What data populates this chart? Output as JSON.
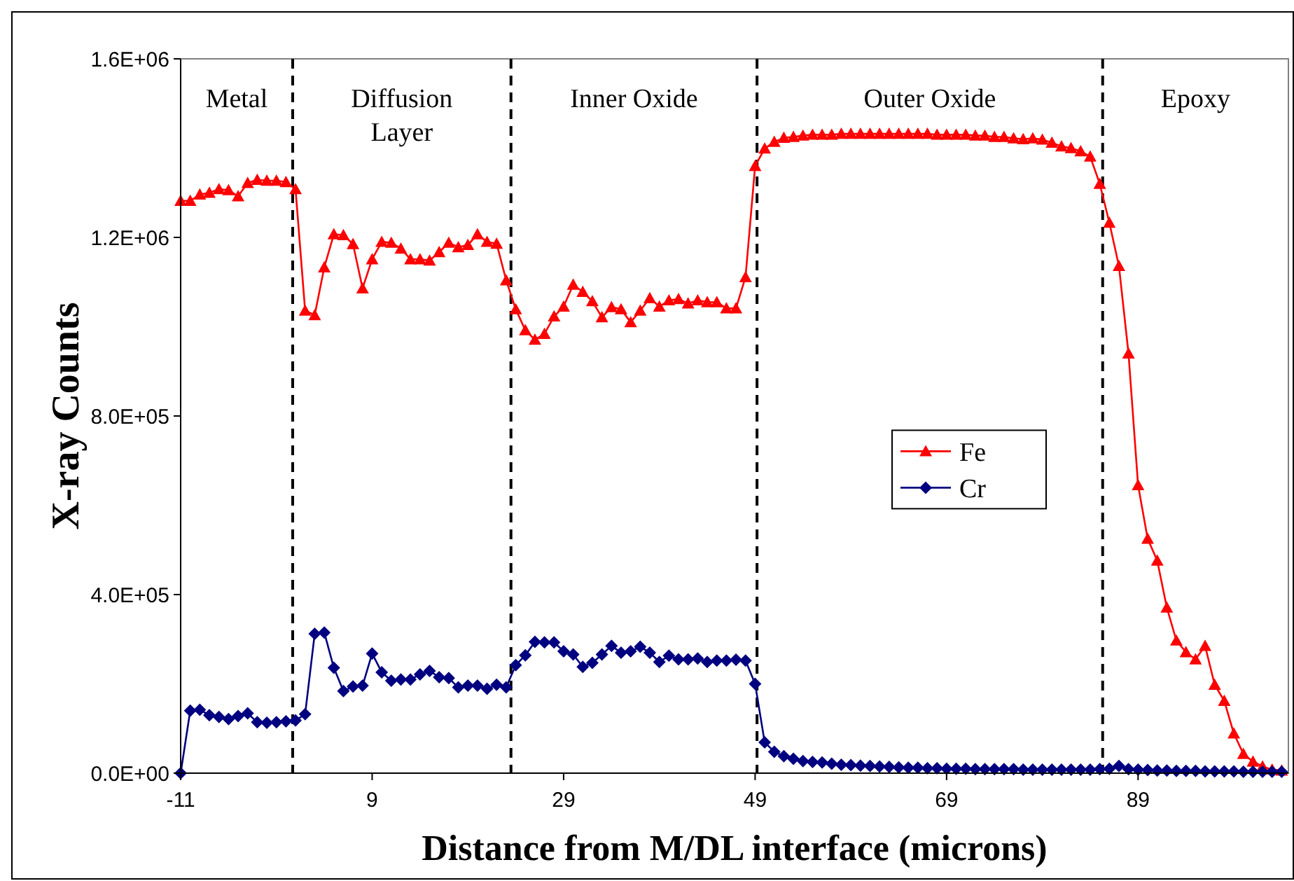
{
  "chart_data": {
    "type": "line",
    "xlabel": "Distance from M/DL interface (microns)",
    "ylabel": "X-ray Counts",
    "xlim": [
      -11,
      104.7
    ],
    "xticks": [
      -11,
      9,
      29,
      49,
      69,
      89
    ],
    "ylim": [
      0,
      1600000
    ],
    "yticks": [
      {
        "value": 0,
        "label": "0.0E+00"
      },
      {
        "value": 400000,
        "label": "4.0E+05"
      },
      {
        "value": 800000,
        "label": "8.0E+05"
      },
      {
        "value": 1200000,
        "label": "1.2E+06"
      },
      {
        "value": 1600000,
        "label": "1.6E+06"
      }
    ],
    "grid": false,
    "legend": "right",
    "line_style": "solid",
    "series": [
      {
        "name": "Fe",
        "color": "#ff0000",
        "marker": "triangle",
        "x": [
          -11,
          -10,
          -9,
          -8,
          -7,
          -6,
          -5,
          -4,
          -3,
          -2,
          -1,
          0,
          1,
          2,
          3,
          4,
          5,
          6,
          7,
          8,
          9,
          10,
          11,
          12,
          13,
          14,
          15,
          16,
          17,
          18,
          19,
          20,
          21,
          22,
          23,
          24,
          25,
          26,
          27,
          28,
          29,
          30,
          31,
          32,
          33,
          34,
          35,
          36,
          37,
          38,
          39,
          40,
          41,
          42,
          43,
          44,
          45,
          46,
          47,
          48,
          49,
          50,
          51,
          52,
          53,
          54,
          55,
          56,
          57,
          58,
          59,
          60,
          61,
          62,
          63,
          64,
          65,
          66,
          67,
          68,
          69,
          70,
          71,
          72,
          73,
          74,
          75,
          76,
          77,
          78,
          79,
          80,
          81,
          82,
          83,
          84,
          85,
          86,
          87,
          88,
          89,
          90,
          91,
          92,
          93,
          94,
          95,
          96,
          97,
          98,
          99,
          100,
          101,
          102,
          103,
          104
        ],
        "values": [
          1282000,
          1282000,
          1296000,
          1300000,
          1308000,
          1306000,
          1292000,
          1322000,
          1329000,
          1327000,
          1327000,
          1324000,
          1308000,
          1036000,
          1026000,
          1133000,
          1207000,
          1205000,
          1185000,
          1086000,
          1151000,
          1190000,
          1188000,
          1175000,
          1151000,
          1151000,
          1148000,
          1167000,
          1188000,
          1178000,
          1183000,
          1207000,
          1190000,
          1186000,
          1104000,
          1039000,
          992000,
          971000,
          984000,
          1023000,
          1045000,
          1094000,
          1078000,
          1057000,
          1021000,
          1044000,
          1039000,
          1010000,
          1036000,
          1064000,
          1045000,
          1059000,
          1062000,
          1052000,
          1059000,
          1055000,
          1055000,
          1041000,
          1041000,
          1111000,
          1360000,
          1399000,
          1414000,
          1423000,
          1425000,
          1428000,
          1430000,
          1430000,
          1430000,
          1432000,
          1432000,
          1432000,
          1432000,
          1432000,
          1432000,
          1432000,
          1432000,
          1432000,
          1432000,
          1430000,
          1430000,
          1430000,
          1430000,
          1428000,
          1428000,
          1425000,
          1425000,
          1422000,
          1420000,
          1422000,
          1419000,
          1412000,
          1404000,
          1400000,
          1393000,
          1381000,
          1320000,
          1233000,
          1136000,
          940000,
          645000,
          525000,
          476000,
          371000,
          297000,
          271000,
          255000,
          285000,
          198000,
          162000,
          89000,
          43000,
          26000,
          15000,
          8000,
          6000
        ]
      },
      {
        "name": "Cr",
        "color": "#000080",
        "marker": "diamond",
        "x": [
          -11,
          -10,
          -9,
          -8,
          -7,
          -6,
          -5,
          -4,
          -3,
          -2,
          -1,
          0,
          1,
          2,
          3,
          4,
          5,
          6,
          7,
          8,
          9,
          10,
          11,
          12,
          13,
          14,
          15,
          16,
          17,
          18,
          19,
          20,
          21,
          22,
          23,
          24,
          25,
          26,
          27,
          28,
          29,
          30,
          31,
          32,
          33,
          34,
          35,
          36,
          37,
          38,
          39,
          40,
          41,
          42,
          43,
          44,
          45,
          46,
          47,
          48,
          49,
          50,
          51,
          52,
          53,
          54,
          55,
          56,
          57,
          58,
          59,
          60,
          61,
          62,
          63,
          64,
          65,
          66,
          67,
          68,
          69,
          70,
          71,
          72,
          73,
          74,
          75,
          76,
          77,
          78,
          79,
          80,
          81,
          82,
          83,
          84,
          85,
          86,
          87,
          88,
          89,
          90,
          91,
          92,
          93,
          94,
          95,
          96,
          97,
          98,
          99,
          100,
          101,
          102,
          103,
          104
        ],
        "values": [
          0,
          140000,
          142000,
          130000,
          126000,
          121000,
          128000,
          134000,
          114000,
          113000,
          114000,
          116000,
          118000,
          132000,
          312000,
          315000,
          236000,
          184000,
          194000,
          196000,
          268000,
          226000,
          207000,
          210000,
          210000,
          221000,
          229000,
          215000,
          213000,
          192000,
          196000,
          196000,
          189000,
          198000,
          192000,
          242000,
          264000,
          294000,
          293000,
          293000,
          273000,
          266000,
          238000,
          247000,
          266000,
          285000,
          270000,
          273000,
          283000,
          270000,
          249000,
          263000,
          255000,
          255000,
          257000,
          249000,
          252000,
          252000,
          254000,
          252000,
          200000,
          69000,
          48000,
          38000,
          32000,
          27000,
          25000,
          24000,
          21000,
          19000,
          18000,
          17000,
          16000,
          15000,
          14000,
          13000,
          12000,
          12000,
          11000,
          11000,
          10000,
          10000,
          10000,
          9000,
          9000,
          9000,
          9000,
          9000,
          8000,
          8000,
          8000,
          8000,
          8000,
          8000,
          8000,
          8000,
          9000,
          10000,
          16000,
          9000,
          8000,
          7000,
          6000,
          6000,
          5000,
          5000,
          5000,
          4000,
          4000,
          4000,
          4000,
          3000,
          3000,
          3000,
          3000,
          3000
        ]
      }
    ],
    "ref_lines": [
      {
        "axis": "x",
        "value": 0.7,
        "color": "#000000",
        "line_style": "dashed"
      },
      {
        "axis": "x",
        "value": 23.5,
        "color": "#000000",
        "line_style": "dashed"
      },
      {
        "axis": "x",
        "value": 49.2,
        "color": "#000000",
        "line_style": "dashed"
      },
      {
        "axis": "x",
        "value": 85.3,
        "color": "#000000",
        "line_style": "dashed"
      }
    ],
    "annotations": [
      "Metal",
      "Diffusion Layer",
      "Inner Oxide",
      "Outer Oxide",
      "Epoxy"
    ]
  }
}
